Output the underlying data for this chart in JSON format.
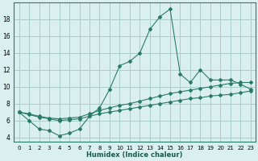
{
  "xlabel": "Humidex (Indice chaleur)",
  "background_color": "#daf0f0",
  "grid_color": "#aacccc",
  "line_color": "#2a7a6a",
  "xlim": [
    -0.5,
    23.5
  ],
  "ylim": [
    3.5,
    20
  ],
  "xticks": [
    0,
    1,
    2,
    3,
    4,
    5,
    6,
    7,
    8,
    9,
    10,
    11,
    12,
    13,
    14,
    15,
    16,
    17,
    18,
    19,
    20,
    21,
    22,
    23
  ],
  "yticks": [
    4,
    6,
    8,
    10,
    12,
    14,
    16,
    18
  ],
  "x": [
    0,
    1,
    2,
    3,
    4,
    5,
    6,
    7,
    8,
    9,
    10,
    11,
    12,
    13,
    14,
    15,
    16,
    17,
    18,
    19,
    20,
    21,
    22,
    23
  ],
  "y_max": [
    7.0,
    6.0,
    5.0,
    4.8,
    4.2,
    4.5,
    5.0,
    6.5,
    7.5,
    9.7,
    12.5,
    13.0,
    14.0,
    16.8,
    18.3,
    19.2,
    11.5,
    10.5,
    12.0,
    10.8,
    10.8,
    10.8,
    10.3,
    9.7
  ],
  "y_mid": [
    7.0,
    6.8,
    6.5,
    6.3,
    6.2,
    6.3,
    6.4,
    6.8,
    7.2,
    7.5,
    7.8,
    8.0,
    8.3,
    8.6,
    8.9,
    9.2,
    9.4,
    9.6,
    9.8,
    10.0,
    10.2,
    10.4,
    10.5,
    10.5
  ],
  "y_min": [
    7.0,
    6.7,
    6.4,
    6.2,
    6.0,
    6.1,
    6.2,
    6.5,
    6.8,
    7.0,
    7.2,
    7.4,
    7.6,
    7.8,
    8.0,
    8.2,
    8.4,
    8.6,
    8.7,
    8.9,
    9.0,
    9.1,
    9.3,
    9.5
  ]
}
